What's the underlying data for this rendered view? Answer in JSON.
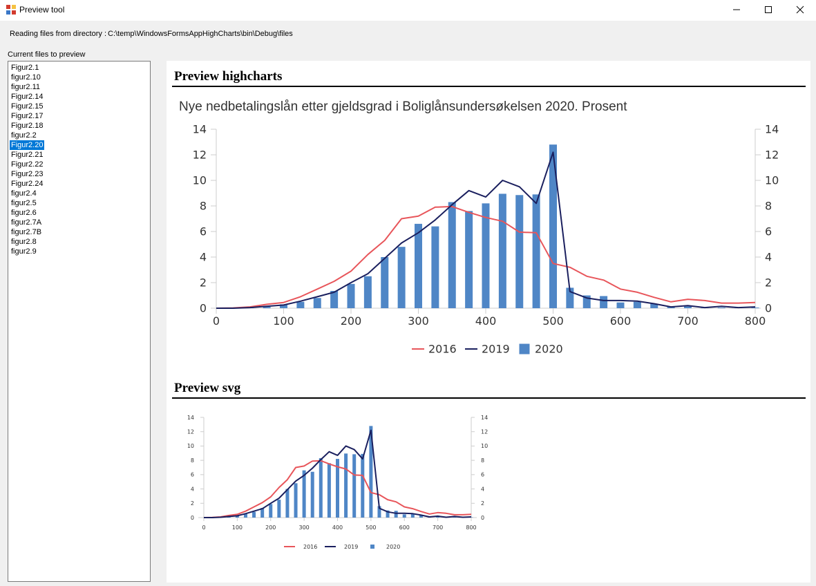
{
  "window": {
    "title": "Preview tool",
    "buttons": [
      "minimize",
      "maximize",
      "close"
    ],
    "icons": {
      "app": "app-icon",
      "minimize": "minimize-icon",
      "maximize": "maximize-icon",
      "close": "close-icon"
    }
  },
  "header": {
    "dir_label": "Reading files from directory :",
    "dir_path": "C:\\temp\\WindowsFormsAppHighCharts\\bin\\Debug\\files",
    "files_label": "Current files to preview"
  },
  "file_list": {
    "items": [
      "Figur2.1",
      "figur2.10",
      "figur2.11",
      "Figur2.14",
      "Figur2.15",
      "Figur2.17",
      "Figur2.18",
      "figur2.2",
      "Figur2.20",
      "Figur2.21",
      "Figur2.22",
      "Figur2.23",
      "Figur2.24",
      "figur2.4",
      "figur2.5",
      "figur2.6",
      "figur2.7A",
      "figur2.7B",
      "figur2.8",
      "figur2.9"
    ],
    "selected": "Figur2.20"
  },
  "preview": {
    "highcharts_heading": "Preview highcharts",
    "svg_heading": "Preview svg"
  },
  "colors": {
    "series_2016": "#e8555a",
    "series_2019": "#1a1f5e",
    "series_2020": "#4f86c6",
    "selection": "#0078d7"
  },
  "chart_data": {
    "type": "bar",
    "title": "Nye nedbetalingslån etter gjeldsgrad i Boliglånsundersøkelsen 2020. Prosent",
    "x_ticks": [
      0,
      100,
      200,
      300,
      400,
      500,
      600,
      700,
      800
    ],
    "y_ticks": [
      0,
      2,
      4,
      6,
      8,
      10,
      12,
      14
    ],
    "ylim": [
      0,
      14
    ],
    "xlim": [
      0,
      800
    ],
    "x": [
      0,
      25,
      50,
      75,
      100,
      125,
      150,
      175,
      200,
      225,
      250,
      275,
      300,
      325,
      350,
      375,
      400,
      425,
      450,
      475,
      500,
      525,
      550,
      575,
      600,
      625,
      650,
      675,
      700,
      725,
      750,
      775,
      800
    ],
    "series": [
      {
        "name": "2016",
        "type": "line",
        "values": [
          0,
          0.02,
          0.1,
          0.3,
          0.45,
          0.9,
          1.5,
          2.1,
          2.9,
          4.2,
          5.3,
          7.0,
          7.2,
          7.9,
          7.95,
          7.5,
          7.1,
          6.8,
          5.95,
          5.9,
          3.5,
          3.2,
          2.5,
          2.2,
          1.5,
          1.25,
          0.85,
          0.5,
          0.7,
          0.6,
          0.4,
          0.4,
          0.45
        ]
      },
      {
        "name": "2019",
        "type": "line",
        "values": [
          0,
          0,
          0.05,
          0.15,
          0.25,
          0.55,
          0.9,
          1.25,
          2.0,
          2.7,
          3.9,
          5.1,
          5.9,
          6.9,
          8.1,
          9.2,
          8.7,
          10.0,
          9.5,
          8.2,
          12.2,
          1.3,
          0.8,
          0.6,
          0.6,
          0.55,
          0.35,
          0.1,
          0.2,
          0.05,
          0.15,
          0.05,
          0.1
        ]
      },
      {
        "name": "2020",
        "type": "bar",
        "values": [
          0,
          0,
          0.05,
          0.1,
          0.3,
          0.5,
          0.8,
          1.35,
          1.9,
          2.5,
          4.0,
          4.8,
          6.6,
          6.4,
          8.3,
          7.6,
          8.2,
          8.95,
          8.85,
          8.9,
          12.8,
          1.6,
          1.0,
          0.95,
          0.45,
          0.5,
          0.35,
          0.1,
          0.15,
          0.05,
          0.05,
          0.05,
          0.05
        ]
      }
    ],
    "legend": "bottom-center",
    "grid": false
  }
}
